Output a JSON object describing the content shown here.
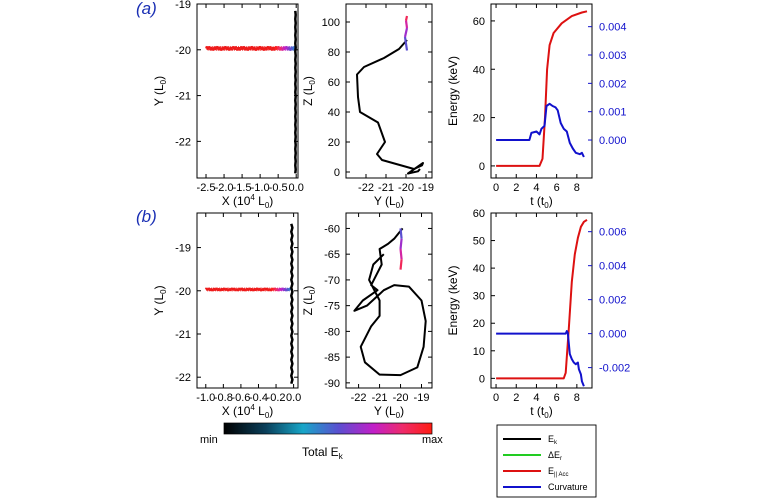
{
  "panel_labels": [
    "(a)",
    "(b)"
  ],
  "colorbar": {
    "min_label": "min",
    "max_label": "max",
    "title": "Total E",
    "title_sub": "k"
  },
  "legend": [
    {
      "label": "E",
      "sub": "k",
      "color": "#000000"
    },
    {
      "label": "ΔE",
      "sub": "r",
      "color": "#22cc22"
    },
    {
      "label": "E",
      "sub": "|| Acc",
      "color": "#dd1111"
    },
    {
      "label": "Curvature",
      "sub": "",
      "color": "#1111cc"
    }
  ],
  "chart_data": [
    {
      "panel": "a-1",
      "type": "line",
      "xlabel": "X (10",
      "xlabel_sup": "4",
      "xlabel_end": " L",
      "xlabel_sub": "0",
      "xlabel_close": ")",
      "ylabel": "Y (L",
      "ylabel_sub": "0",
      "ylabel_close": ")",
      "xlim": [
        -2.75,
        0.05
      ],
      "ylim": [
        -22.8,
        -19.0
      ],
      "xticks": [
        -2.5,
        -2.0,
        -1.5,
        -1.0,
        -0.5,
        0.0
      ],
      "xtick_labels": [
        "-2.5",
        "-2.0",
        "-1.5",
        "-1.0",
        "-0.5",
        "0.0"
      ],
      "yticks": [
        -19,
        -20,
        -21,
        -22
      ],
      "trajectory_colored": {
        "x_start": -2.5,
        "x_end": -0.05,
        "y_mean": -19.97,
        "wiggle_amp": 0.05
      },
      "trajectory_black": {
        "x": -0.02,
        "y_top": -19.15,
        "y_bottom": -22.7
      }
    },
    {
      "panel": "a-2",
      "type": "line",
      "xlabel": "Y (L",
      "xlabel_sub": "0",
      "xlabel_close": ")",
      "ylabel": "Z (L",
      "ylabel_sub": "0",
      "ylabel_close": ")",
      "xlim": [
        -23.0,
        -18.7
      ],
      "ylim": [
        -4,
        112
      ],
      "xticks": [
        -22,
        -21,
        -20,
        -19
      ],
      "yticks": [
        0,
        20,
        40,
        60,
        80,
        100
      ],
      "path": [
        [
          -19.95,
          88
        ],
        [
          -20.35,
          82
        ],
        [
          -21.1,
          76
        ],
        [
          -22.1,
          70
        ],
        [
          -22.45,
          65
        ],
        [
          -22.4,
          50
        ],
        [
          -22.3,
          40
        ],
        [
          -21.4,
          33
        ],
        [
          -21.05,
          20
        ],
        [
          -21.45,
          12
        ],
        [
          -21.2,
          8
        ],
        [
          -20.4,
          5
        ],
        [
          -19.6,
          2
        ],
        [
          -19.2,
          4.5
        ],
        [
          -19.15,
          6
        ],
        [
          -19.9,
          -1
        ],
        [
          -19.4,
          0.5
        ],
        [
          -19.3,
          2
        ]
      ],
      "path_colored": [
        [
          -19.95,
          81
        ],
        [
          -20.05,
          90
        ],
        [
          -19.95,
          96
        ],
        [
          -20.0,
          101
        ],
        [
          -19.95,
          104
        ]
      ]
    },
    {
      "panel": "a-3",
      "type": "line",
      "xlabel": "t (t",
      "xlabel_sub": "0",
      "xlabel_close": ")",
      "ylabel": "Energy (keV)",
      "xlim": [
        -0.5,
        9.5
      ],
      "ylim": [
        -5,
        67
      ],
      "y2lim": [
        -0.00134,
        0.0048
      ],
      "xticks": [
        0,
        2,
        4,
        6,
        8
      ],
      "yticks": [
        0,
        20,
        40,
        60
      ],
      "y2ticks": [
        0.0,
        0.001,
        0.002,
        0.003,
        0.004
      ],
      "y2tick_labels": [
        "0.000",
        "0.001",
        "0.002",
        "0.003",
        "0.004"
      ],
      "series": [
        {
          "name": "E|| Acc",
          "axis": "left",
          "color": "#dd1111",
          "points": [
            [
              0,
              0
            ],
            [
              4.3,
              0
            ],
            [
              4.6,
              3
            ],
            [
              4.85,
              20
            ],
            [
              5.05,
              40
            ],
            [
              5.3,
              50
            ],
            [
              5.7,
              55
            ],
            [
              6.5,
              59
            ],
            [
              7.5,
              62
            ],
            [
              8.5,
              63.5
            ],
            [
              9.0,
              64
            ]
          ]
        },
        {
          "name": "Curvature",
          "axis": "right",
          "color": "#1111cc",
          "points": [
            [
              0,
              0.0
            ],
            [
              3.3,
              0.0
            ],
            [
              3.5,
              0.00025
            ],
            [
              4.0,
              0.0003
            ],
            [
              4.3,
              0.0002
            ],
            [
              4.5,
              0.0004
            ],
            [
              4.8,
              0.0005
            ],
            [
              5.0,
              0.0012
            ],
            [
              5.3,
              0.00128
            ],
            [
              5.6,
              0.0012
            ],
            [
              5.9,
              0.00115
            ],
            [
              6.1,
              0.00105
            ],
            [
              6.4,
              0.0006
            ],
            [
              6.7,
              0.0004
            ],
            [
              7.0,
              0.0003
            ],
            [
              7.3,
              -0.0001
            ],
            [
              7.6,
              -0.0003
            ],
            [
              7.9,
              -0.00045
            ],
            [
              8.3,
              -0.0005
            ],
            [
              8.5,
              -0.00045
            ],
            [
              8.7,
              -0.0006
            ]
          ]
        }
      ]
    },
    {
      "panel": "b-1",
      "type": "line",
      "xlabel": "X (10",
      "xlabel_sup": "4",
      "xlabel_end": " L",
      "xlabel_sub": "0",
      "xlabel_close": ")",
      "ylabel": "Y (L",
      "ylabel_sub": "0",
      "ylabel_close": ")",
      "xlim": [
        -1.1,
        0.05
      ],
      "ylim": [
        -22.25,
        -18.2
      ],
      "xticks": [
        -1.0,
        -0.8,
        -0.6,
        -0.4,
        -0.2,
        0.0
      ],
      "xtick_labels": [
        "-1.0",
        "-0.8",
        "-0.6",
        "-0.4",
        "-0.2",
        "0.0"
      ],
      "yticks": [
        -19,
        -20,
        -21,
        -22
      ],
      "trajectory_colored": {
        "x_start": -1.0,
        "x_end": -0.04,
        "y_mean": -19.97,
        "wiggle_amp": 0.04
      },
      "trajectory_black": {
        "x": -0.02,
        "y_top": -18.45,
        "y_bottom": -22.15
      }
    },
    {
      "panel": "b-2",
      "type": "line",
      "xlabel": "Y (L",
      "xlabel_sub": "0",
      "xlabel_close": ")",
      "ylabel": "Z (L",
      "ylabel_sub": "0",
      "ylabel_close": ")",
      "xlim": [
        -22.6,
        -18.5
      ],
      "ylim": [
        -91,
        -57
      ],
      "xticks": [
        -22,
        -21,
        -20,
        -19
      ],
      "yticks": [
        -60,
        -65,
        -70,
        -75,
        -80,
        -85,
        -90
      ],
      "path": [
        [
          -19.9,
          -60
        ],
        [
          -20.3,
          -62
        ],
        [
          -20.6,
          -63
        ],
        [
          -21.0,
          -64
        ],
        [
          -20.9,
          -67
        ],
        [
          -21.4,
          -71
        ],
        [
          -21.1,
          -72
        ],
        [
          -21.8,
          -74
        ],
        [
          -22.2,
          -76
        ],
        [
          -21.6,
          -75
        ],
        [
          -20.8,
          -72
        ],
        [
          -20.3,
          -71
        ],
        [
          -19.6,
          -71.3
        ],
        [
          -19.0,
          -74
        ],
        [
          -18.8,
          -78
        ],
        [
          -18.9,
          -83
        ],
        [
          -19.2,
          -87
        ],
        [
          -20.0,
          -88.5
        ],
        [
          -21.0,
          -88.4
        ],
        [
          -21.7,
          -86
        ],
        [
          -21.9,
          -83
        ],
        [
          -21.4,
          -79
        ],
        [
          -21.0,
          -77
        ],
        [
          -21.0,
          -74
        ],
        [
          -21.5,
          -70
        ],
        [
          -21.3,
          -67
        ],
        [
          -20.8,
          -65
        ]
      ],
      "path_colored": [
        [
          -20.0,
          -60
        ],
        [
          -19.95,
          -62
        ],
        [
          -20.0,
          -64
        ],
        [
          -19.95,
          -66
        ],
        [
          -20.0,
          -68
        ]
      ]
    },
    {
      "panel": "b-3",
      "type": "line",
      "xlabel": "t (t",
      "xlabel_sub": "0",
      "xlabel_close": ")",
      "ylabel": "Energy (keV)",
      "xlim": [
        -0.5,
        9.5
      ],
      "ylim": [
        -3.5,
        60
      ],
      "y2lim": [
        -0.0032,
        0.0071
      ],
      "xticks": [
        0,
        2,
        4,
        6,
        8
      ],
      "yticks": [
        0,
        10,
        20,
        30,
        40,
        50,
        60
      ],
      "y2ticks": [
        -0.002,
        0.0,
        0.002,
        0.004,
        0.006
      ],
      "y2tick_labels": [
        "-0.002",
        "0.000",
        "0.002",
        "0.004",
        "0.006"
      ],
      "series": [
        {
          "name": "E|| Acc",
          "axis": "left",
          "color": "#dd1111",
          "points": [
            [
              0,
              0
            ],
            [
              6.7,
              0
            ],
            [
              6.9,
              2
            ],
            [
              7.2,
              18
            ],
            [
              7.5,
              35
            ],
            [
              7.8,
              45
            ],
            [
              8.1,
              51
            ],
            [
              8.4,
              55
            ],
            [
              8.7,
              56.8
            ],
            [
              9.0,
              57.5
            ]
          ]
        },
        {
          "name": "Curvature",
          "axis": "right",
          "color": "#1111cc",
          "points": [
            [
              0,
              0.0
            ],
            [
              6.9,
              0.0
            ],
            [
              7.0,
              0.00015
            ],
            [
              7.1,
              5e-05
            ],
            [
              7.3,
              -0.0012
            ],
            [
              7.5,
              -0.0015
            ],
            [
              7.7,
              -0.0017
            ],
            [
              7.9,
              -0.0018
            ],
            [
              8.1,
              -0.0017
            ],
            [
              8.2,
              -0.0021
            ],
            [
              8.4,
              -0.0024
            ],
            [
              8.5,
              -0.0028
            ],
            [
              8.7,
              -0.0031
            ]
          ]
        }
      ]
    }
  ]
}
